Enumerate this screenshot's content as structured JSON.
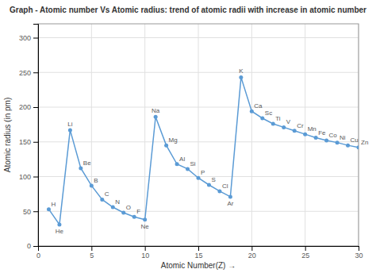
{
  "chart_data": {
    "type": "line",
    "title": "Graph - Atomic number Vs Atomic radius: trend of atomic radii with increase in atomic number",
    "x_label": "Atomic Number(Z) →",
    "y_label": "Atomic radius (in pm)",
    "x": [
      1,
      2,
      3,
      4,
      5,
      6,
      7,
      8,
      9,
      10,
      11,
      12,
      13,
      14,
      15,
      16,
      17,
      18,
      19,
      20,
      21,
      22,
      23,
      24,
      25,
      26,
      27,
      28,
      29,
      30
    ],
    "series": [
      {
        "color": "#5b9bd5",
        "marker": "circle",
        "values": [
          53,
          31,
          167,
          112,
          87,
          67,
          56,
          48,
          42,
          38,
          186,
          145,
          118,
          111,
          98,
          88,
          79,
          71,
          243,
          194,
          184,
          176,
          171,
          166,
          161,
          156,
          152,
          149,
          145,
          142
        ]
      }
    ],
    "annotations": [
      "H",
      "He",
      "Li",
      "Be",
      "B",
      "C",
      "N",
      "O",
      "F",
      "Ne",
      "Na",
      "Mg",
      "Al",
      "Si",
      "P",
      "S",
      "Cl",
      "Ar",
      "K",
      "Ca",
      "Sc",
      "Ti",
      "V",
      "Cr",
      "Mn",
      "Fe",
      "Co",
      "Ni",
      "Cu",
      "Zn"
    ],
    "xlim": [
      0,
      30
    ],
    "ylim": [
      0,
      320
    ],
    "xticks": [
      0,
      5,
      10,
      15,
      20,
      25,
      30
    ],
    "yticks": [
      0,
      50,
      100,
      150,
      200,
      250,
      300
    ],
    "grid": true
  }
}
